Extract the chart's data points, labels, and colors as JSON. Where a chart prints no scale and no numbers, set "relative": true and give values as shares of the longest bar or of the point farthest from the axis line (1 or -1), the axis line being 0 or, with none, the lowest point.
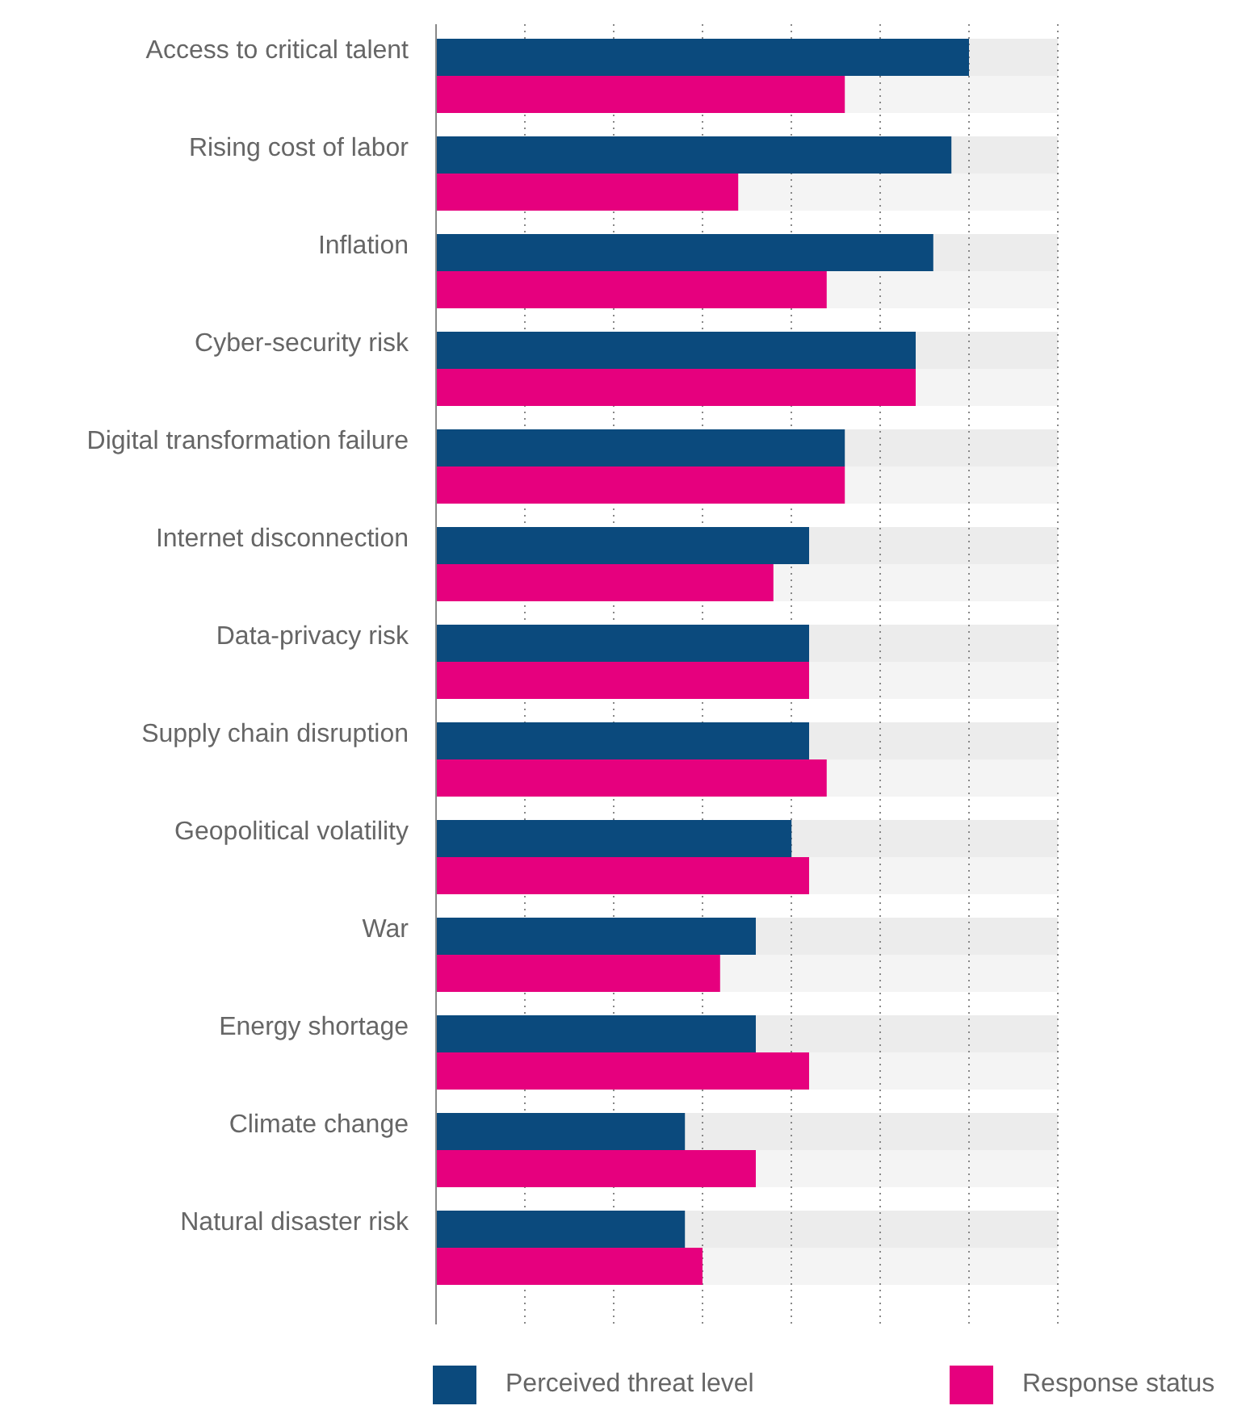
{
  "chart_data": {
    "type": "bar",
    "orientation": "horizontal",
    "relative": true,
    "grid": true,
    "legend": "bottom",
    "categories": [
      "Access to critical talent",
      "Rising cost of labor",
      "Inflation",
      "Cyber-security risk",
      "Digital transformation failure",
      "Internet disconnection",
      "Data-privacy risk",
      "Supply chain disruption",
      "Geopolitical volatility",
      "War",
      "Energy shortage",
      "Climate change",
      "Natural disaster risk"
    ],
    "series": [
      {
        "name": "Perceived threat level",
        "color": "#0b4a7d",
        "values": [
          1,
          0.967,
          0.933,
          0.9,
          0.767,
          0.7,
          0.7,
          0.7,
          0.667,
          0.6,
          0.6,
          0.467,
          0.467
        ]
      },
      {
        "name": "Response status",
        "color": "#e6007e",
        "values": [
          0.767,
          0.567,
          0.733,
          0.9,
          0.767,
          0.633,
          0.7,
          0.733,
          0.7,
          0.533,
          0.7,
          0.6,
          0.5
        ]
      }
    ]
  }
}
